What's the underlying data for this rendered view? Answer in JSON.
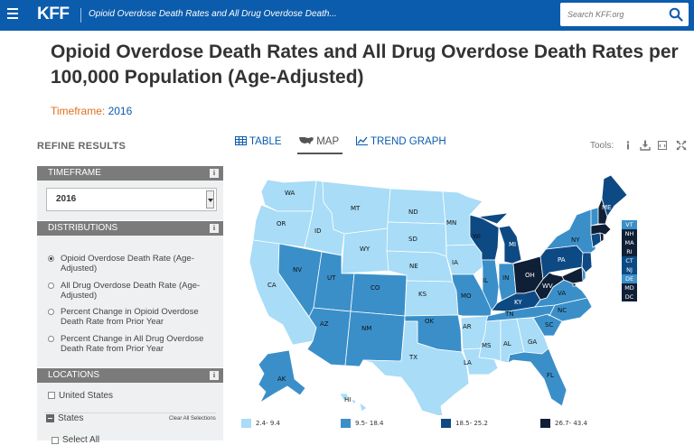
{
  "header": {
    "logo": "KFF",
    "breadcrumb": "Opioid Overdose Death Rates and All Drug Overdose Death...",
    "search_placeholder": "Search KFF.org"
  },
  "page": {
    "title": "Opioid Overdose Death Rates and All Drug Overdose Death Rates per 100,000 Population (Age-Adjusted)",
    "timeframe_label": "Timeframe:",
    "timeframe_value": "2016"
  },
  "sidebar": {
    "heading": "REFINE RESULTS",
    "timeframe": {
      "label": "TIMEFRAME",
      "selected": "2016",
      "info": "i"
    },
    "distributions": {
      "label": "DISTRIBUTIONS",
      "info": "i",
      "options": [
        {
          "label": "Opioid Overdose Death Rate (Age-Adjusted)",
          "selected": true
        },
        {
          "label": "All Drug Overdose Death Rate (Age-Adjusted)",
          "selected": false
        },
        {
          "label": "Percent Change in Opioid Overdose Death Rate from Prior Year",
          "selected": false
        },
        {
          "label": "Percent Change in All Drug Overdose Death Rate from Prior Year",
          "selected": false
        }
      ]
    },
    "locations": {
      "label": "LOCATIONS",
      "info": "i",
      "united_states": "United States",
      "states": "States",
      "clear_all": "Clear All Selections",
      "select_all": "Select All"
    }
  },
  "views": {
    "table": "TABLE",
    "map": "MAP",
    "trend": "TREND GRAPH",
    "active": "map",
    "tools_label": "Tools:"
  },
  "map": {
    "bins": [
      {
        "label": "2.4- 9.4",
        "color": "#a8dcf7"
      },
      {
        "label": "9.5- 18.4",
        "color": "#3a8fc9"
      },
      {
        "label": "18.5- 25.2",
        "color": "#0d4a84"
      },
      {
        "label": "26.7- 43.4",
        "color": "#0f1f36"
      }
    ],
    "state_bins": {
      "WA": 0,
      "OR": 0,
      "CA": 0,
      "ID": 0,
      "MT": 0,
      "WY": 0,
      "ND": 0,
      "SD": 0,
      "NE": 0,
      "KS": 0,
      "MN": 0,
      "IA": 0,
      "AR": 0,
      "TX": 0,
      "MS": 0,
      "AL": 0,
      "GA": 0,
      "LA": 0,
      "HI": 0,
      "NV": 1,
      "UT": 1,
      "CO": 1,
      "AZ": 1,
      "NM": 1,
      "OK": 1,
      "MO": 1,
      "IL": 1,
      "IN": 1,
      "TN": 1,
      "SC": 1,
      "NC": 1,
      "VA": 1,
      "FL": 1,
      "AK": 1,
      "NY": 1,
      "VT": 1,
      "DE": 1,
      "WI": 2,
      "MI": 2,
      "KY": 2,
      "PA": 2,
      "CT": 2,
      "NJ": 2,
      "ME": 2,
      "OH": 3,
      "WV": 3,
      "NH": 3,
      "MA": 3,
      "RI": 3,
      "MD": 3,
      "DC": 3
    },
    "small_states": [
      "VT",
      "NH",
      "MA",
      "RI",
      "CT",
      "NJ",
      "DE",
      "MD",
      "DC"
    ]
  }
}
